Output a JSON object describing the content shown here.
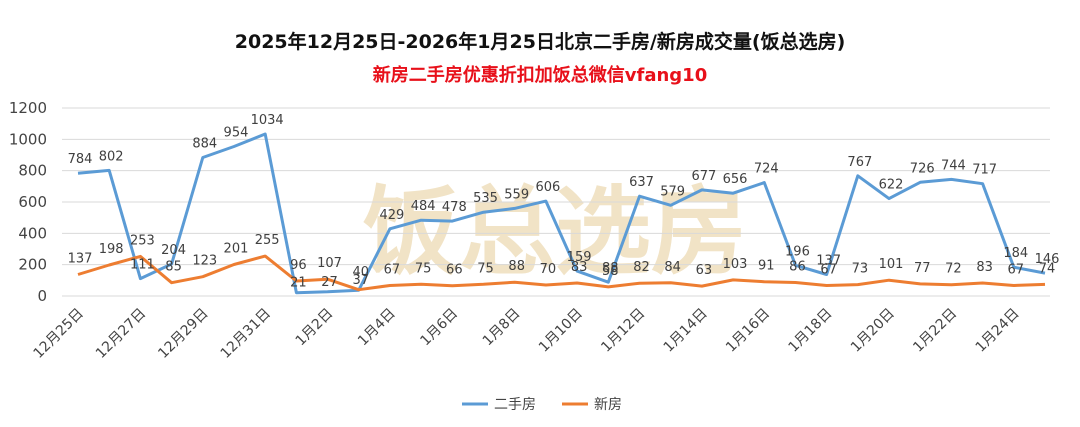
{
  "chart_data": {
    "type": "line",
    "title": "2025年12月25日-2026年1月25日北京二手房/新房成交量(饭总选房)",
    "subtitle": "新房二手房优惠折扣加饭总微信vfang10",
    "watermark": "饭总选房",
    "x": [
      "12月25日",
      "12月26日",
      "12月27日",
      "12月28日",
      "12月29日",
      "12月30日",
      "12月31日",
      "1月1日",
      "1月2日",
      "1月3日",
      "1月4日",
      "1月5日",
      "1月6日",
      "1月7日",
      "1月8日",
      "1月9日",
      "1月10日",
      "1月11日",
      "1月12日",
      "1月13日",
      "1月14日",
      "1月15日",
      "1月16日",
      "1月17日",
      "1月18日",
      "1月19日",
      "1月20日",
      "1月21日",
      "1月22日",
      "1月23日",
      "1月24日",
      "1月25日"
    ],
    "x_tick_labels": [
      "12月25日",
      "12月27日",
      "12月29日",
      "12月31日",
      "1月2日",
      "1月4日",
      "1月6日",
      "1月8日",
      "1月10日",
      "1月12日",
      "1月14日",
      "1月16日",
      "1月18日",
      "1月20日",
      "1月22日",
      "1月24日"
    ],
    "y_ticks": [
      0,
      200,
      400,
      600,
      800,
      1000,
      1200
    ],
    "ylim": [
      0,
      1200
    ],
    "grid": true,
    "legend_position": "bottom",
    "series": [
      {
        "name": "二手房",
        "color": "#5b9bd5",
        "values": [
          784,
          802,
          111,
          204,
          884,
          954,
          1034,
          21,
          27,
          37,
          429,
          484,
          478,
          535,
          559,
          606,
          159,
          88,
          637,
          579,
          677,
          656,
          724,
          196,
          137,
          767,
          622,
          726,
          744,
          717,
          184,
          146
        ]
      },
      {
        "name": "新房",
        "color": "#ed7d31",
        "values": [
          137,
          198,
          253,
          85,
          123,
          201,
          255,
          96,
          107,
          40,
          67,
          75,
          66,
          75,
          88,
          70,
          83,
          58,
          82,
          84,
          63,
          103,
          91,
          86,
          67,
          73,
          101,
          77,
          72,
          83,
          67,
          74
        ]
      }
    ]
  }
}
